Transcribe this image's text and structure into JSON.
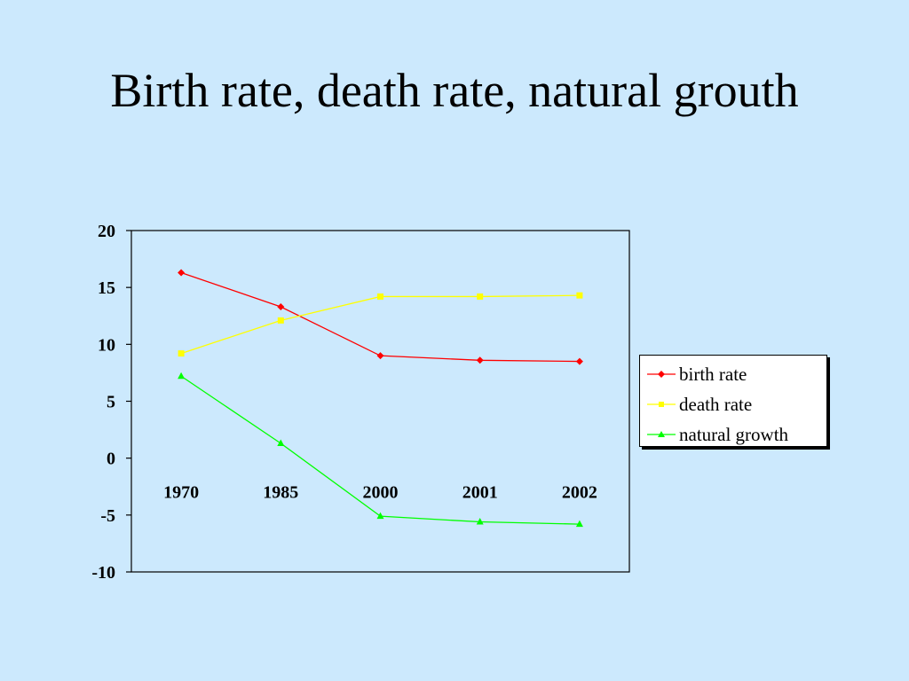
{
  "slide": {
    "title": "Birth rate, death rate, natural grouth"
  },
  "chart_data": {
    "type": "line",
    "categories": [
      "1970",
      "1985",
      "2000",
      "2001",
      "2002"
    ],
    "series": [
      {
        "name": "birth rate",
        "values": [
          16.3,
          13.3,
          9.0,
          8.6,
          8.5
        ],
        "color": "#ff0000",
        "marker": "diamond"
      },
      {
        "name": "death rate",
        "values": [
          9.2,
          12.1,
          14.2,
          14.2,
          14.3
        ],
        "color": "#ffff00",
        "marker": "square"
      },
      {
        "name": "natural growth",
        "values": [
          7.2,
          1.3,
          -5.1,
          -5.6,
          -5.8
        ],
        "color": "#00ff00",
        "marker": "triangle"
      }
    ],
    "ylim": [
      -10,
      20
    ],
    "yticks": [
      "20",
      "15",
      "10",
      "5",
      "0",
      "-5",
      "-10"
    ],
    "grid": false,
    "legend_position": "right"
  }
}
